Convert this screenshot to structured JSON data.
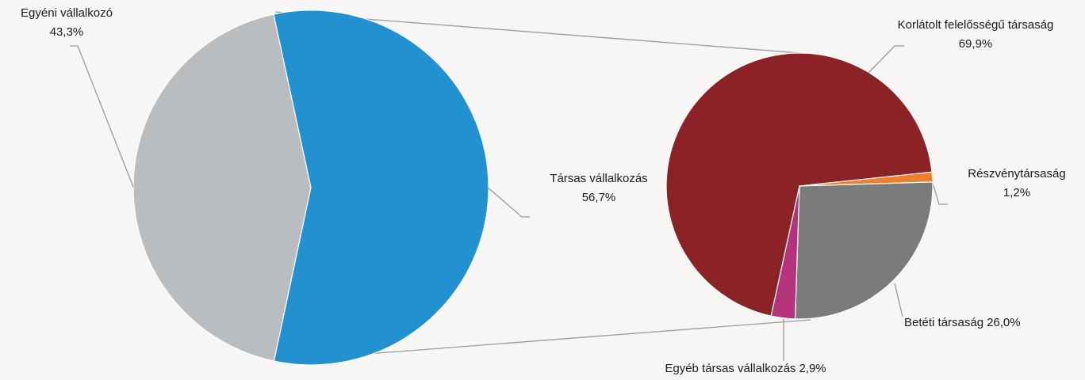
{
  "chart_data": [
    {
      "type": "pie",
      "categories": [
        "Egyéni vállalkozó",
        "Társas vállalkozás"
      ],
      "values": [
        43.3,
        56.7
      ],
      "value_labels": [
        "43,3%",
        "56,7%"
      ],
      "colors": [
        "#b9bdc0",
        "#2291d0"
      ]
    },
    {
      "type": "pie",
      "categories": [
        "Korlátolt felelősségű társaság",
        "Részvénytársaság",
        "Betéti társaság",
        "Egyéb társas vállalkozás"
      ],
      "values": [
        69.9,
        1.2,
        26.0,
        2.9
      ],
      "value_labels": [
        "69,9%",
        "1,2%",
        "26,0%",
        "2,9%"
      ],
      "colors": [
        "#8b2226",
        "#f07f2a",
        "#7a7b7d",
        "#b5337c"
      ]
    }
  ]
}
